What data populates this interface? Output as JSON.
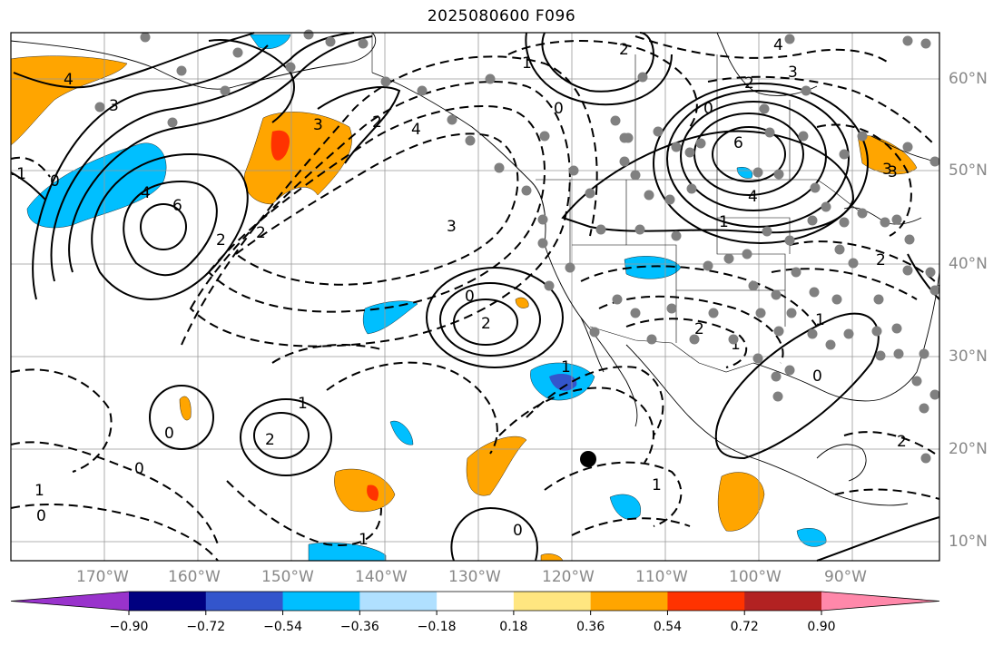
{
  "title": "2025080600 F096",
  "lat_labels": [
    "60°N",
    "50°N",
    "40°N",
    "30°N",
    "20°N",
    "10°N"
  ],
  "lon_labels": [
    "170°W",
    "160°W",
    "150°W",
    "140°W",
    "130°W",
    "120°W",
    "110°W",
    "100°W",
    "90°W"
  ],
  "colorbar": {
    "colors": [
      "#9933cc",
      "#000080",
      "#3355cc",
      "#00bfff",
      "#b0e0ff",
      "#ffffff",
      "#ffe680",
      "#ffa500",
      "#ff3300",
      "#b22222",
      "#ff88aa"
    ],
    "ticks": [
      "−0.90",
      "−0.72",
      "−0.54",
      "−0.36",
      "−0.18",
      "0.18",
      "0.36",
      "0.54",
      "0.72",
      "0.90"
    ]
  },
  "contour_labels": [
    "4",
    "3",
    "-1",
    "0",
    "2",
    "6",
    "4",
    "3",
    "2",
    "4",
    "3",
    "2",
    "1",
    "0",
    "2",
    "4",
    "3",
    "6",
    "4",
    "1",
    "2",
    "3",
    "0",
    "2",
    "1",
    "0",
    "1",
    "2",
    "0",
    "2",
    "1",
    "0",
    "1",
    "0",
    "1",
    "0",
    "1",
    "0",
    "2",
    "1",
    "2",
    "3"
  ]
}
